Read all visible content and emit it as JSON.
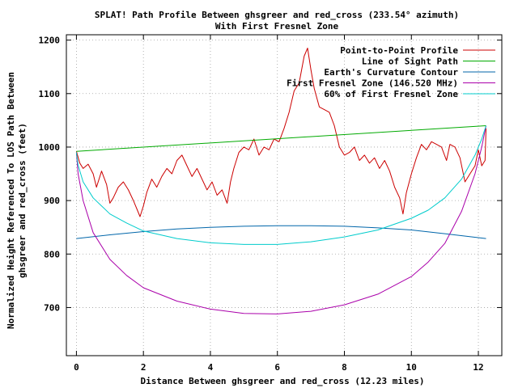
{
  "chart_data": {
    "type": "line",
    "title": "SPLAT! Path Profile Between ghsgreer and red_cross (233.54° azimuth)",
    "subtitle": "With First Fresnel Zone",
    "xlabel": "Distance Between ghsgreer and red_cross (12.23 miles)",
    "ylabel": "Normalized Height Referenced To LOS Path Between",
    "ylabel2": "ghsgreer and red_cross (feet)",
    "xlim": [
      -0.3,
      12.7
    ],
    "ylim": [
      610,
      1210
    ],
    "xticks": [
      "0",
      "2",
      "4",
      "6",
      "8",
      "10",
      "12"
    ],
    "xtick_values": [
      0,
      2,
      4,
      6,
      8,
      10,
      12
    ],
    "yticks": [
      "700",
      "800",
      "900",
      "1000",
      "1100",
      "1200"
    ],
    "ytick_values": [
      700,
      800,
      900,
      1000,
      1100,
      1200
    ],
    "grid": true,
    "legend_position": "top-right",
    "series": [
      {
        "name": "Point-to-Point Profile",
        "color": "#cc0000",
        "x": [
          0,
          0.1,
          0.2,
          0.35,
          0.5,
          0.6,
          0.75,
          0.9,
          1.0,
          1.1,
          1.25,
          1.4,
          1.55,
          1.7,
          1.8,
          1.9,
          2.0,
          2.1,
          2.25,
          2.4,
          2.55,
          2.7,
          2.85,
          3.0,
          3.15,
          3.3,
          3.45,
          3.6,
          3.75,
          3.9,
          4.05,
          4.2,
          4.35,
          4.5,
          4.6,
          4.7,
          4.85,
          5.0,
          5.15,
          5.3,
          5.45,
          5.6,
          5.75,
          5.9,
          6.05,
          6.2,
          6.35,
          6.5,
          6.65,
          6.8,
          6.9,
          7.0,
          7.1,
          7.25,
          7.4,
          7.55,
          7.7,
          7.85,
          8.0,
          8.15,
          8.3,
          8.45,
          8.6,
          8.75,
          8.9,
          9.05,
          9.2,
          9.35,
          9.5,
          9.65,
          9.75,
          9.85,
          10.0,
          10.15,
          10.3,
          10.45,
          10.6,
          10.75,
          10.9,
          11.05,
          11.15,
          11.3,
          11.45,
          11.6,
          11.75,
          11.9,
          12.0,
          12.1,
          12.2,
          12.23
        ],
        "values": [
          992,
          970,
          960,
          968,
          950,
          925,
          955,
          930,
          895,
          905,
          925,
          935,
          920,
          900,
          885,
          870,
          890,
          915,
          940,
          925,
          945,
          960,
          950,
          975,
          985,
          965,
          945,
          960,
          940,
          920,
          935,
          910,
          920,
          895,
          935,
          960,
          990,
          1000,
          995,
          1015,
          985,
          1000,
          995,
          1015,
          1010,
          1035,
          1065,
          1105,
          1120,
          1170,
          1185,
          1145,
          1110,
          1075,
          1070,
          1065,
          1040,
          1000,
          985,
          990,
          1000,
          975,
          985,
          970,
          980,
          960,
          975,
          955,
          925,
          905,
          875,
          915,
          950,
          980,
          1005,
          995,
          1010,
          1005,
          1000,
          975,
          1005,
          1000,
          980,
          935,
          950,
          965,
          995,
          965,
          975,
          1035
        ]
      },
      {
        "name": "Line of Sight Path",
        "color": "#00aa00",
        "x": [
          0,
          12.23
        ],
        "values": [
          992,
          1040
        ]
      },
      {
        "name": "Earth's Curvature Contour",
        "color": "#0066aa",
        "x": [
          0,
          1,
          2,
          3,
          4,
          5,
          6,
          7,
          8,
          9,
          10,
          11,
          12.23
        ],
        "values": [
          829,
          836,
          842,
          847,
          850,
          852,
          853,
          853,
          852,
          849,
          845,
          838,
          829
        ]
      },
      {
        "name": "First Fresnel Zone (146.520 MHz)",
        "color": "#aa00aa",
        "x": [
          0,
          0.05,
          0.2,
          0.5,
          1,
          1.5,
          2,
          3,
          4,
          5,
          6,
          7,
          8,
          9,
          10,
          10.5,
          11,
          11.5,
          11.9,
          12.1,
          12.23
        ],
        "values": [
          990,
          950,
          900,
          840,
          790,
          760,
          737,
          712,
          697,
          689,
          688,
          693,
          705,
          725,
          758,
          785,
          820,
          880,
          950,
          1000,
          1040
        ]
      },
      {
        "name": "60% of First Fresnel Zone",
        "color": "#00cccc",
        "x": [
          0,
          0.05,
          0.2,
          0.5,
          1,
          1.5,
          2,
          3,
          4,
          5,
          6,
          7,
          8,
          9,
          10,
          10.5,
          11,
          11.5,
          11.9,
          12.1,
          12.23
        ],
        "values": [
          990,
          966,
          935,
          905,
          875,
          858,
          843,
          829,
          821,
          818,
          818,
          823,
          832,
          845,
          867,
          882,
          905,
          940,
          985,
          1015,
          1040
        ]
      }
    ]
  }
}
